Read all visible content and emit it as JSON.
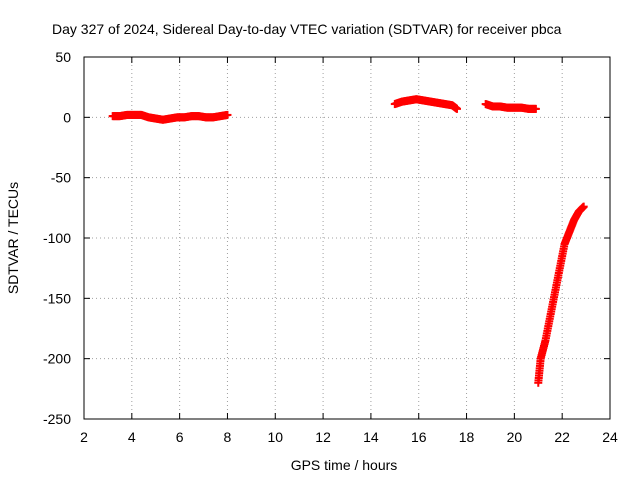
{
  "chart_data": {
    "type": "scatter",
    "title": "Day 327 of 2024, Sidereal Day-to-day VTEC variation (SDTVAR) for receiver pbca",
    "xlabel": "GPS time / hours",
    "ylabel": "SDTVAR / TECUs",
    "xlim": [
      2,
      24
    ],
    "ylim": [
      -250,
      50
    ],
    "xticks": [
      2,
      4,
      6,
      8,
      10,
      12,
      14,
      16,
      18,
      20,
      22,
      24
    ],
    "yticks": [
      -250,
      -200,
      -150,
      -100,
      -50,
      0,
      50
    ],
    "grid": true,
    "series": [
      {
        "name": "SDTVAR",
        "color": "#ff0000",
        "marker": "plus",
        "segments": [
          {
            "x": [
              3.2,
              3.5,
              3.8,
              4.1,
              4.4,
              4.7,
              5.0,
              5.3,
              5.6,
              5.9,
              6.2,
              6.5,
              6.8,
              7.1,
              7.4,
              7.7,
              8.0
            ],
            "y": [
              1,
              1,
              2,
              2,
              2,
              0,
              -1,
              -2,
              -1,
              0,
              0,
              1,
              1,
              0,
              0,
              1,
              2
            ]
          },
          {
            "x": [
              15.0,
              15.3,
              15.6,
              15.9,
              16.2,
              16.5,
              16.8,
              17.1,
              17.4,
              17.6
            ],
            "y": [
              11,
              13,
              14,
              15,
              14,
              13,
              12,
              11,
              10,
              7
            ]
          },
          {
            "x": [
              18.8,
              19.1,
              19.4,
              19.7,
              20.0,
              20.3,
              20.6,
              20.9
            ],
            "y": [
              11,
              9,
              9,
              8,
              8,
              8,
              7,
              7
            ]
          },
          {
            "x": [
              21.0,
              21.1,
              21.3,
              21.5,
              21.7,
              21.9,
              22.1,
              22.3,
              22.5,
              22.7,
              22.9
            ],
            "y": [
              -220,
              -200,
              -185,
              -165,
              -145,
              -125,
              -105,
              -95,
              -85,
              -78,
              -74
            ]
          }
        ]
      }
    ]
  }
}
